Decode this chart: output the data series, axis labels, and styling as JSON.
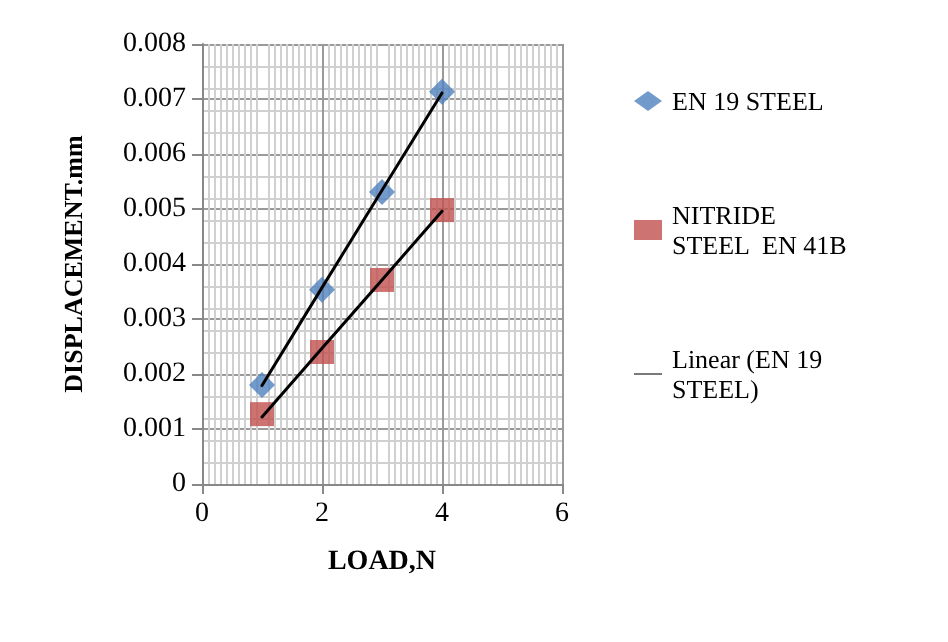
{
  "chart_data": {
    "type": "scatter",
    "xlabel": "LOAD,N",
    "ylabel": "DISPLACEMENT.mm",
    "x": [
      1,
      2,
      3,
      4
    ],
    "series": [
      {
        "name": "EN 19 STEEL",
        "color": "#4f81bd",
        "marker": "diamond",
        "values": [
          0.0018,
          0.00353,
          0.00531,
          0.00713
        ]
      },
      {
        "name": "NITRIDE STEEL  EN 41B",
        "color": "#c0504d",
        "marker": "square",
        "values": [
          0.00127,
          0.0024,
          0.00371,
          0.00498
        ]
      },
      {
        "name": "Linear (EN 19 STEEL)",
        "type": "line",
        "color": "#000000",
        "marker": "none",
        "values": [
          0.00179,
          0.00357,
          0.00534,
          0.00711
        ]
      },
      {
        "type": "line",
        "color": "#000000",
        "marker": "none",
        "values": [
          0.00122,
          0.00247,
          0.00371,
          0.00496
        ]
      }
    ],
    "xlim": [
      0,
      6
    ],
    "xticks": [
      0,
      2,
      4,
      6
    ],
    "ylim": [
      0,
      0.008
    ],
    "yticks": [
      0,
      0.001,
      0.002,
      0.003,
      0.004,
      0.005,
      0.006,
      0.007,
      0.008
    ],
    "grid": true,
    "legend": "right"
  }
}
